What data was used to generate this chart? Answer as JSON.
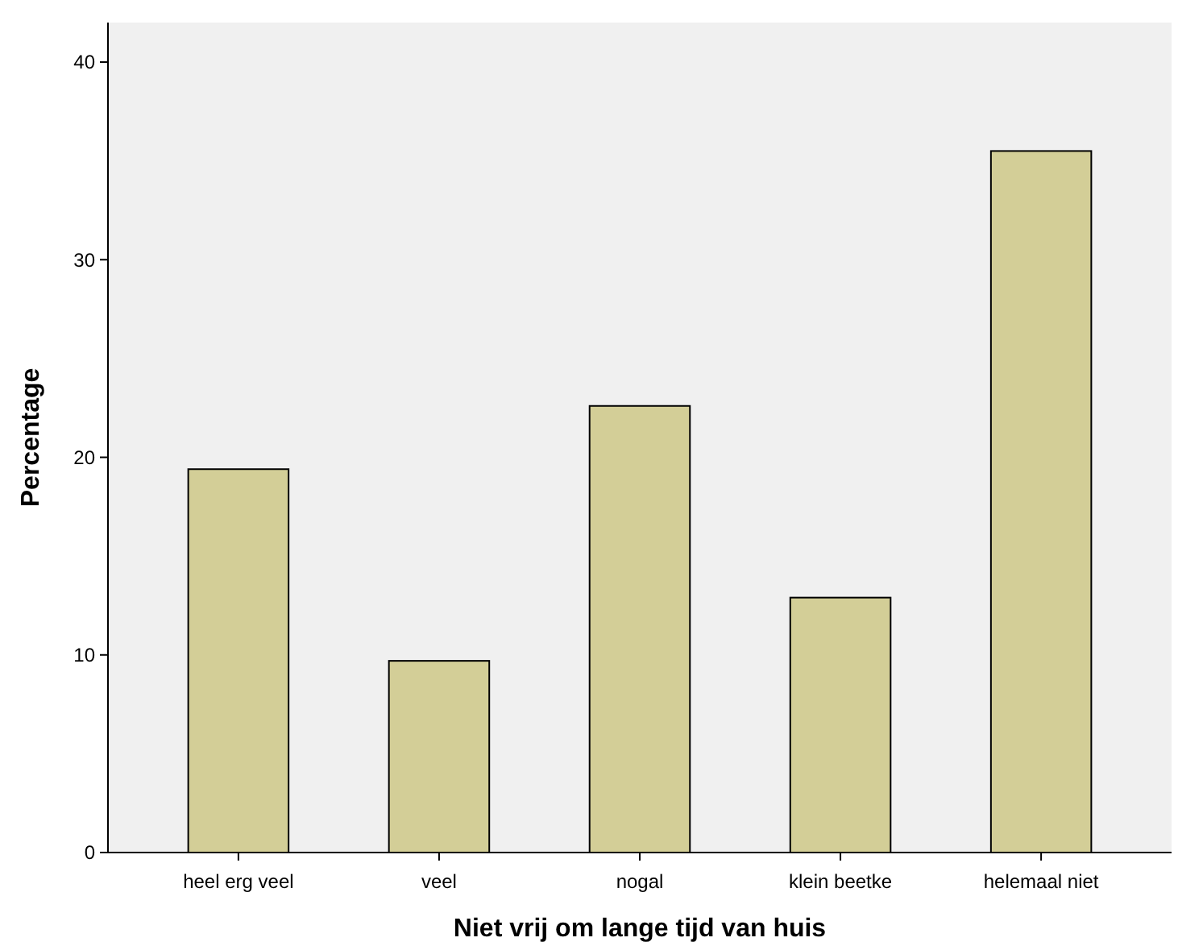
{
  "chart_data": {
    "type": "bar",
    "xlabel": "Niet vrij om lange tijd van huis",
    "ylabel": "Percentage",
    "categories": [
      "heel erg veel",
      "veel",
      "nogal",
      "klein beetke",
      "helemaal niet"
    ],
    "values": [
      19.4,
      9.7,
      22.6,
      12.9,
      35.5
    ],
    "color": "#d3ce97",
    "ylim": [
      0,
      42
    ],
    "yticks": [
      0,
      10,
      20,
      30,
      40
    ],
    "grid": false
  }
}
